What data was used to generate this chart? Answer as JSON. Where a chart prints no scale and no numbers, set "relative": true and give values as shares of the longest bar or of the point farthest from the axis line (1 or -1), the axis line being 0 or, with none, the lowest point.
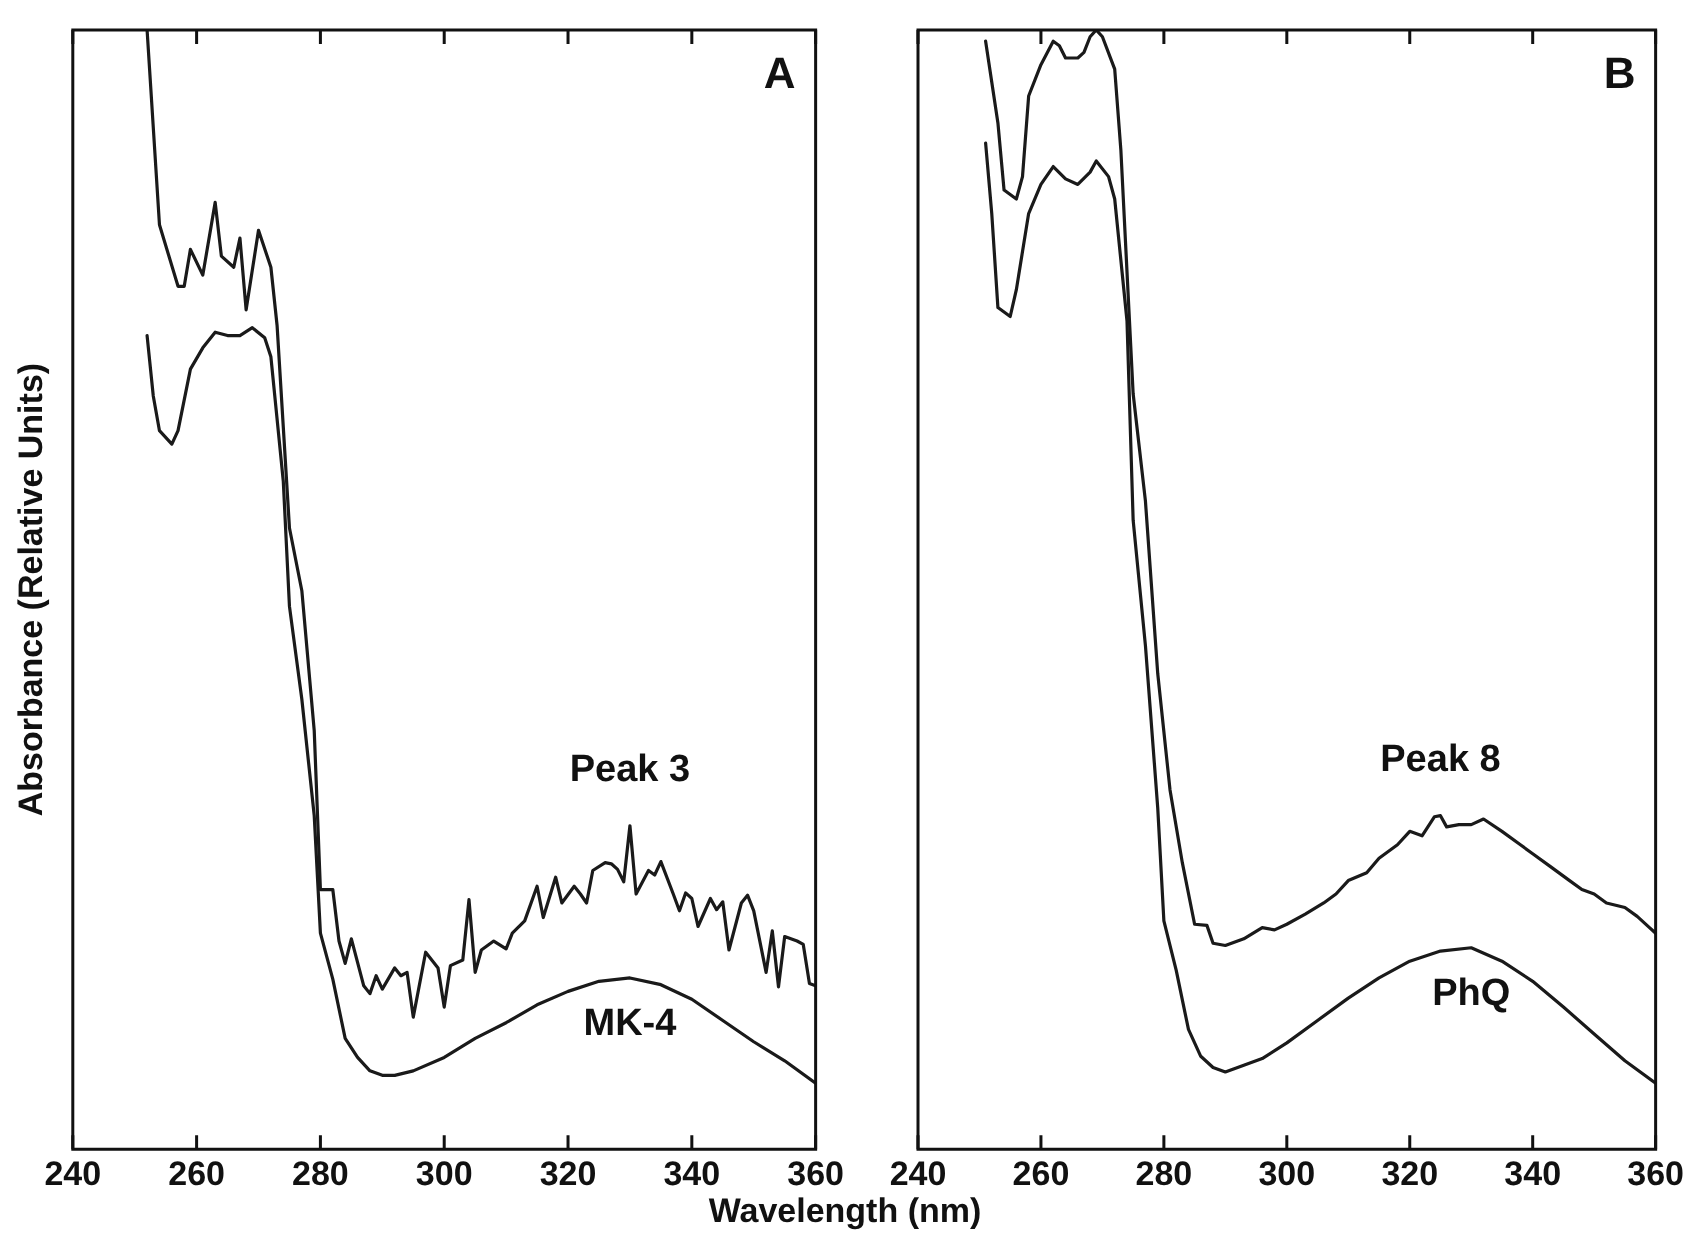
{
  "chart_data": [
    {
      "type": "line",
      "title": "A",
      "xlabel": "Wavelength (nm)",
      "ylabel": "Absorbance (Relative Units)",
      "relative": true,
      "xlim": [
        240,
        360
      ],
      "xticks": [
        240,
        260,
        280,
        300,
        320,
        340,
        360
      ],
      "tick_labels": "x",
      "marker": "none",
      "line_style": "solid",
      "series": [
        {
          "name": "Peak 3",
          "color": "#1a1a1a",
          "x": [
            252,
            254,
            257,
            258,
            259,
            261,
            263,
            264,
            266,
            267,
            268,
            270,
            272,
            273,
            275,
            277,
            279,
            280,
            282,
            283,
            284,
            285,
            287,
            288,
            289,
            290,
            292,
            293,
            294,
            295,
            297,
            299,
            300,
            301,
            303,
            304,
            305,
            306,
            308,
            310,
            311,
            313,
            315,
            316,
            318,
            319,
            321,
            322,
            323,
            324,
            326,
            327,
            328,
            329,
            330,
            331,
            333,
            334,
            335,
            337,
            338,
            339,
            340,
            341,
            343,
            344,
            345,
            346,
            348,
            349,
            350,
            352,
            353,
            354,
            355,
            357,
            358,
            359,
            360
          ],
          "values": [
            1.0,
            0.826,
            0.771,
            0.771,
            0.804,
            0.781,
            0.846,
            0.798,
            0.788,
            0.814,
            0.75,
            0.821,
            0.788,
            0.736,
            0.555,
            0.499,
            0.374,
            0.232,
            0.232,
            0.186,
            0.166,
            0.188,
            0.146,
            0.139,
            0.155,
            0.143,
            0.162,
            0.155,
            0.158,
            0.118,
            0.176,
            0.162,
            0.127,
            0.164,
            0.169,
            0.223,
            0.158,
            0.178,
            0.186,
            0.179,
            0.193,
            0.204,
            0.235,
            0.207,
            0.243,
            0.22,
            0.235,
            0.228,
            0.22,
            0.249,
            0.256,
            0.255,
            0.25,
            0.239,
            0.289,
            0.228,
            0.249,
            0.245,
            0.257,
            0.228,
            0.213,
            0.229,
            0.224,
            0.199,
            0.224,
            0.214,
            0.221,
            0.178,
            0.22,
            0.227,
            0.213,
            0.158,
            0.195,
            0.145,
            0.19,
            0.186,
            0.183,
            0.148,
            0.146
          ]
        },
        {
          "name": "MK-4",
          "color": "#1a1a1a",
          "x": [
            252,
            253,
            254,
            256,
            257,
            259,
            261,
            263,
            265,
            267,
            269,
            271,
            272,
            274,
            275,
            277,
            279,
            280,
            282,
            284,
            286,
            288,
            290,
            292,
            295,
            300,
            305,
            310,
            315,
            320,
            325,
            330,
            335,
            340,
            345,
            350,
            355,
            360
          ],
          "values": [
            0.727,
            0.673,
            0.642,
            0.63,
            0.642,
            0.697,
            0.716,
            0.73,
            0.727,
            0.727,
            0.734,
            0.725,
            0.708,
            0.597,
            0.485,
            0.402,
            0.298,
            0.193,
            0.152,
            0.099,
            0.082,
            0.07,
            0.066,
            0.066,
            0.07,
            0.082,
            0.099,
            0.113,
            0.129,
            0.141,
            0.15,
            0.153,
            0.147,
            0.134,
            0.115,
            0.096,
            0.079,
            0.059
          ]
        }
      ]
    },
    {
      "type": "line",
      "title": "B",
      "relative": true,
      "xlim": [
        240,
        360
      ],
      "xticks": [
        240,
        260,
        280,
        300,
        320,
        340,
        360
      ],
      "tick_labels": "x",
      "marker": "none",
      "line_style": "solid",
      "series": [
        {
          "name": "Peak 8",
          "color": "#1a1a1a",
          "x": [
            251,
            253,
            254,
            256,
            257,
            258,
            260,
            262,
            263,
            264,
            266,
            267,
            268,
            269,
            270,
            272,
            273,
            275,
            277,
            279,
            281,
            283,
            285,
            287,
            288,
            290,
            293,
            296,
            298,
            300,
            303,
            306,
            308,
            310,
            313,
            315,
            318,
            320,
            322,
            324,
            325,
            326,
            328,
            330,
            332,
            335,
            338,
            340,
            343,
            346,
            348,
            350,
            352,
            355,
            357,
            359,
            360
          ],
          "values": [
            0.99,
            0.917,
            0.857,
            0.849,
            0.869,
            0.941,
            0.969,
            0.99,
            0.986,
            0.975,
            0.975,
            0.98,
            0.994,
            1.0,
            0.994,
            0.965,
            0.893,
            0.675,
            0.579,
            0.425,
            0.321,
            0.256,
            0.201,
            0.2,
            0.184,
            0.182,
            0.188,
            0.198,
            0.196,
            0.201,
            0.21,
            0.22,
            0.228,
            0.24,
            0.247,
            0.26,
            0.272,
            0.284,
            0.28,
            0.297,
            0.298,
            0.288,
            0.29,
            0.29,
            0.295,
            0.284,
            0.272,
            0.264,
            0.252,
            0.24,
            0.232,
            0.228,
            0.22,
            0.216,
            0.208,
            0.198,
            0.193
          ]
        },
        {
          "name": "PhQ",
          "color": "#1a1a1a",
          "x": [
            251,
            252,
            253,
            255,
            256,
            258,
            260,
            262,
            264,
            266,
            268,
            269,
            271,
            272,
            274,
            275,
            277,
            279,
            280,
            282,
            284,
            286,
            288,
            290,
            293,
            296,
            300,
            305,
            310,
            315,
            320,
            325,
            330,
            335,
            340,
            345,
            350,
            355,
            360
          ],
          "values": [
            0.899,
            0.836,
            0.752,
            0.744,
            0.768,
            0.836,
            0.862,
            0.878,
            0.867,
            0.862,
            0.873,
            0.883,
            0.869,
            0.849,
            0.74,
            0.562,
            0.45,
            0.305,
            0.204,
            0.16,
            0.107,
            0.083,
            0.073,
            0.069,
            0.075,
            0.081,
            0.095,
            0.115,
            0.135,
            0.153,
            0.168,
            0.177,
            0.18,
            0.168,
            0.15,
            0.127,
            0.103,
            0.079,
            0.059
          ]
        }
      ]
    }
  ]
}
